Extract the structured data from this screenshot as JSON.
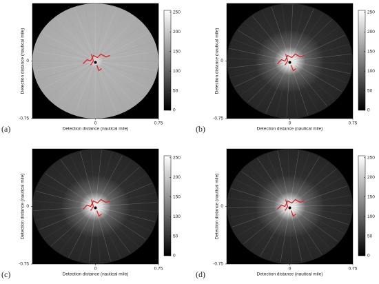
{
  "chart_data": [
    {
      "type": "image",
      "panel_label": "(a)",
      "xlabel": "Detection distance (nautical mile)",
      "ylabel": "Detection distance (nautical mile)",
      "xlim": [
        -0.75,
        0.75
      ],
      "xticks": [
        0,
        0.75
      ],
      "ylim": [
        -0.75,
        0.75
      ],
      "yticks": [
        -0.75,
        0
      ],
      "colorbar": {
        "clim": [
          0,
          255
        ],
        "ticks": [
          0,
          50,
          100,
          150,
          200,
          250
        ]
      }
    },
    {
      "type": "image",
      "panel_label": "(b)",
      "xlabel": "Detection distance (nautical mile)",
      "ylabel": "Detection distance (nautical mile)",
      "xlim": [
        -0.75,
        0.75
      ],
      "xticks": [
        0,
        0.75
      ],
      "ylim": [
        -0.75,
        0.75
      ],
      "yticks": [
        -0.75,
        0
      ],
      "colorbar": {
        "clim": [
          0,
          255
        ],
        "ticks": [
          0,
          50,
          100,
          150,
          200,
          250
        ]
      }
    },
    {
      "type": "image",
      "panel_label": "(c)",
      "xlabel": "Detection distance (nautical mile)",
      "ylabel": "Detection distance (nautical mile)",
      "xlim": [
        -0.75,
        0.75
      ],
      "xticks": [
        0,
        0.75
      ],
      "ylim": [
        -0.75,
        0.75
      ],
      "yticks": [
        -0.75,
        0
      ],
      "colorbar": {
        "clim": [
          0,
          255
        ],
        "ticks": [
          0,
          50,
          100,
          150,
          200,
          250
        ]
      }
    },
    {
      "type": "image",
      "panel_label": "(d)",
      "xlabel": "Detection distance (nautical mile)",
      "ylabel": "Detection distance (nautical mile)",
      "xlim": [
        -0.75,
        0.75
      ],
      "xticks": [
        0,
        0.75
      ],
      "ylim": [
        -0.75,
        0.75
      ],
      "yticks": [
        -0.75,
        0
      ],
      "colorbar": {
        "clim": [
          0,
          255
        ],
        "ticks": [
          0,
          50,
          100,
          150,
          200,
          250
        ]
      }
    }
  ]
}
